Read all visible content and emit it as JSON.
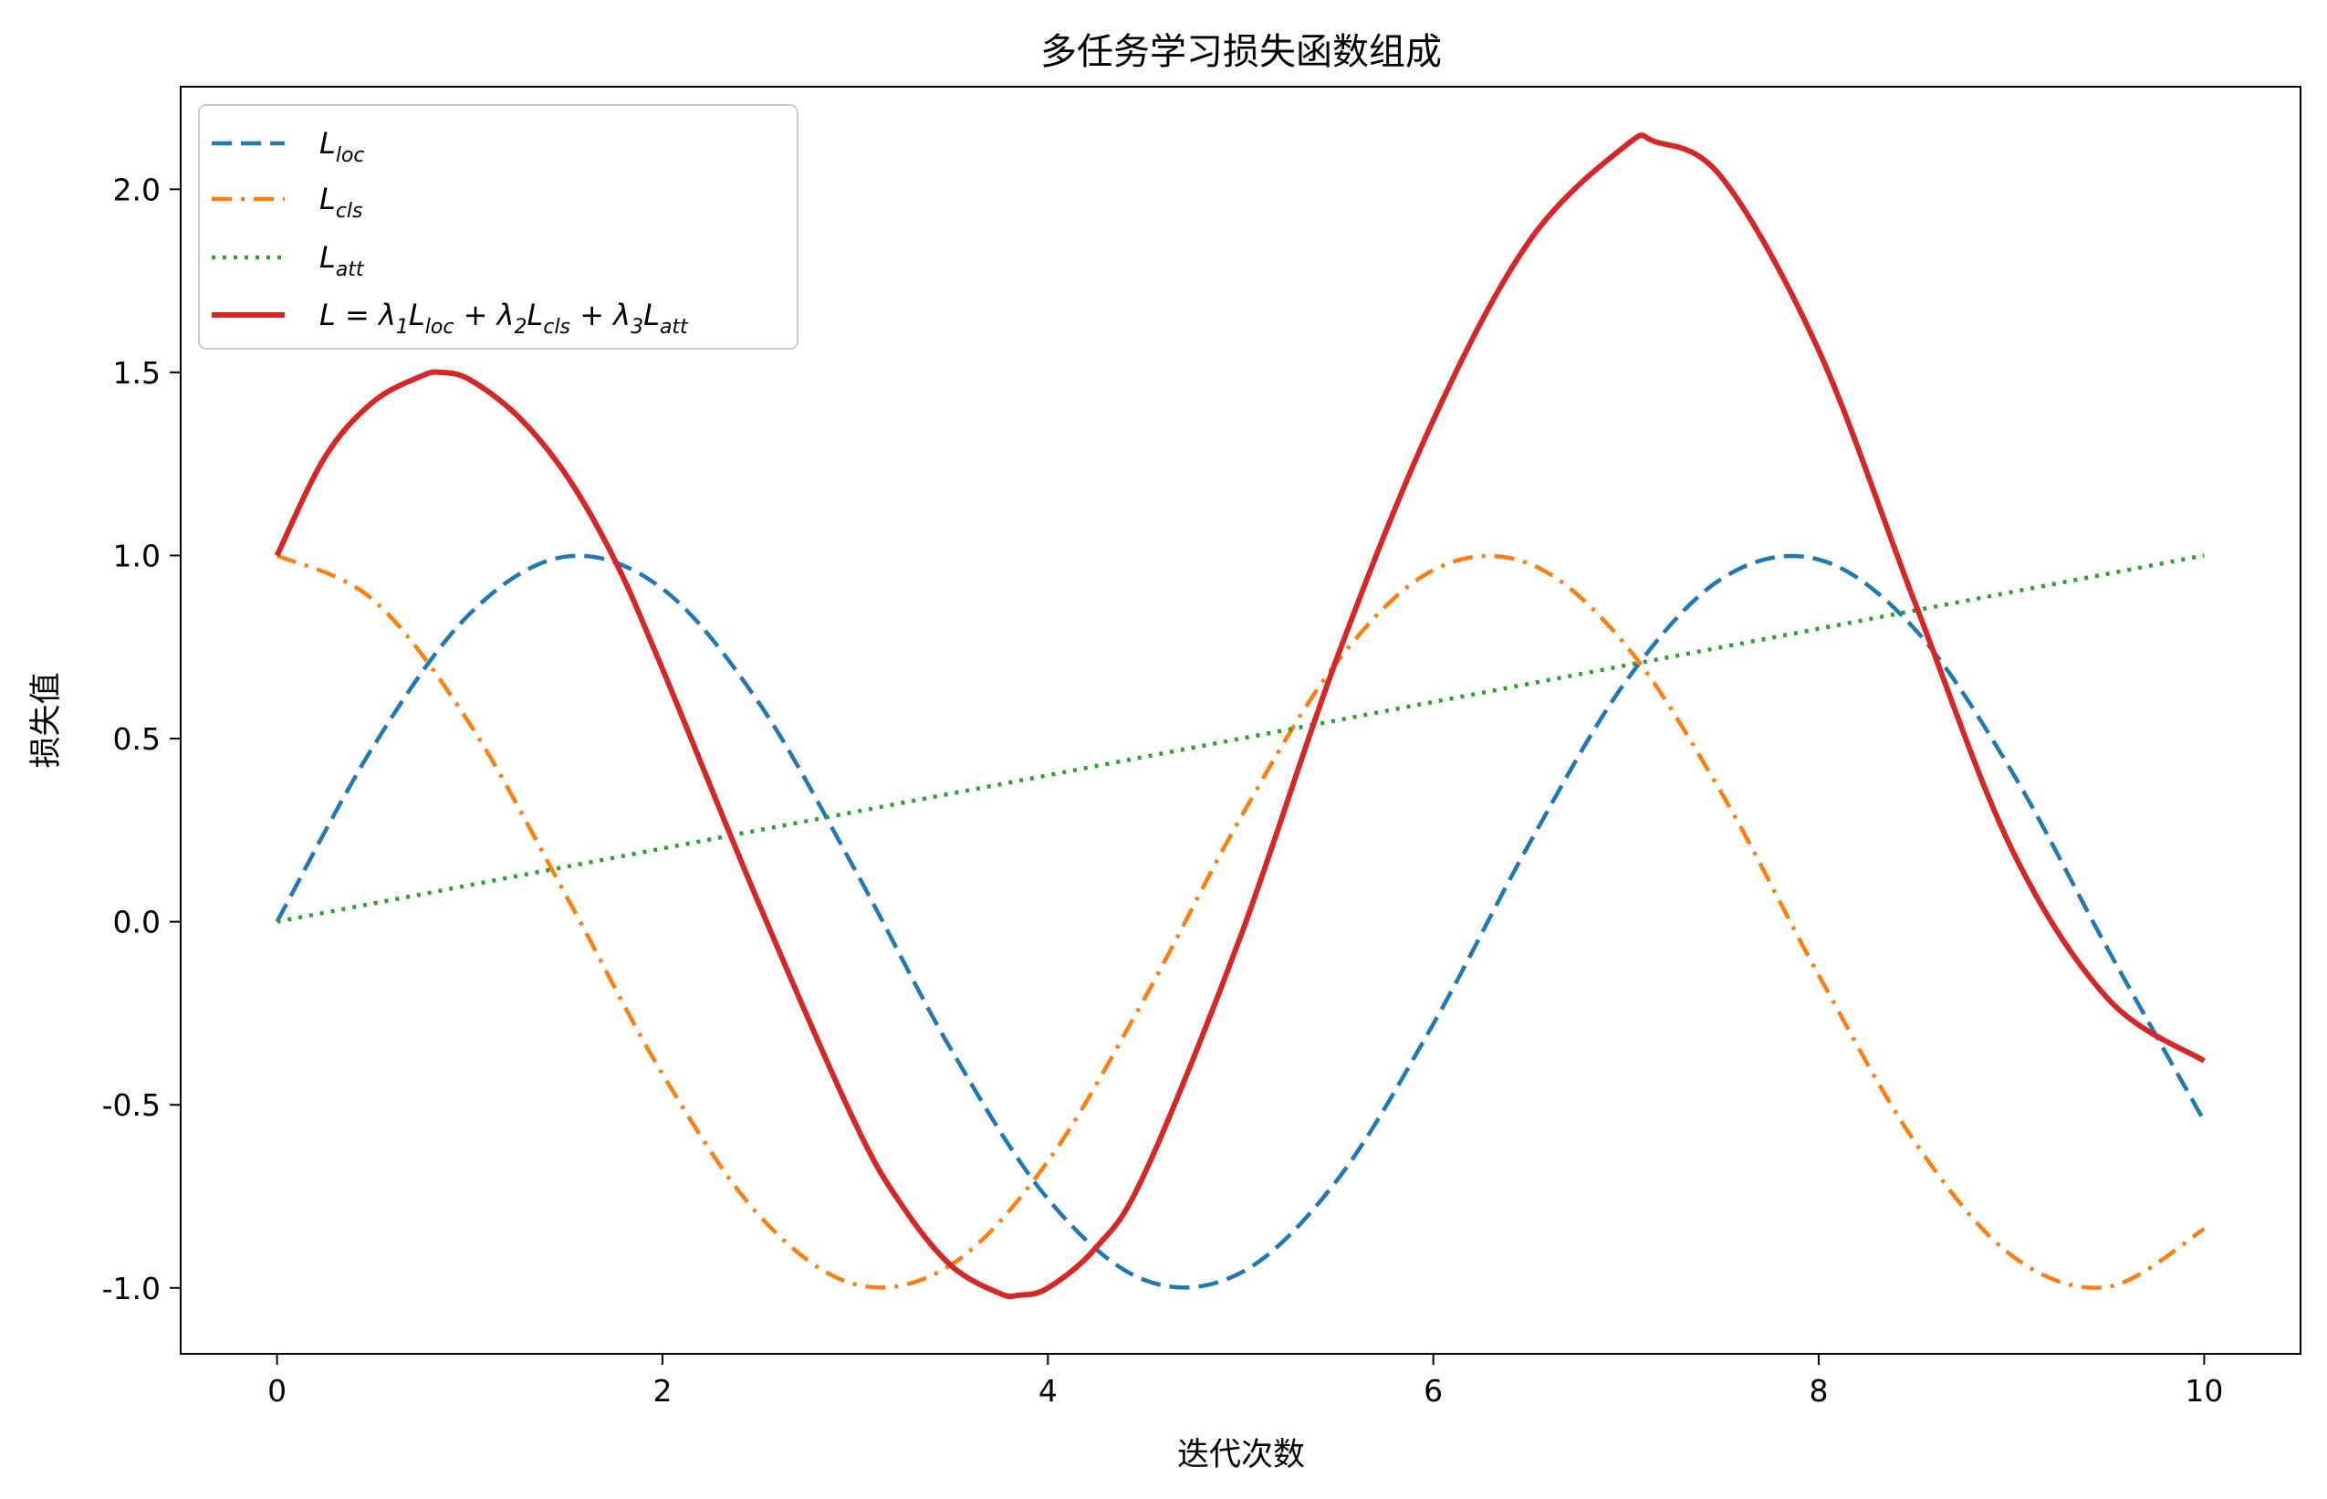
{
  "chart_data": {
    "type": "line",
    "title": "多任务学习损失函数组成",
    "xlabel": "迭代次数",
    "ylabel": "损失值",
    "xlim": [
      -0.5,
      10.5
    ],
    "ylim": [
      -1.18,
      2.28
    ],
    "xticks": [
      0,
      2,
      4,
      6,
      8,
      10
    ],
    "xtick_labels": [
      "0",
      "2",
      "4",
      "6",
      "8",
      "10"
    ],
    "yticks": [
      -1.0,
      -0.5,
      0.0,
      0.5,
      1.0,
      1.5,
      2.0
    ],
    "ytick_labels": [
      "-1.0",
      "-0.5",
      "0.0",
      "0.5",
      "1.0",
      "1.5",
      "2.0"
    ],
    "grid": false,
    "legend_position": "upper-left",
    "series": [
      {
        "name": "L_loc",
        "color": "#1f77b4",
        "dash": "dashed",
        "x": [
          0,
          0.5,
          1,
          1.5,
          2,
          2.5,
          3,
          3.5,
          4,
          4.5,
          5,
          5.5,
          6,
          6.5,
          7,
          7.5,
          8,
          8.5,
          9,
          9.5,
          10
        ],
        "y": [
          0,
          0.479,
          0.841,
          0.997,
          0.909,
          0.598,
          0.141,
          -0.351,
          -0.757,
          -0.978,
          -0.959,
          -0.706,
          -0.279,
          0.215,
          0.657,
          0.938,
          0.989,
          0.798,
          0.412,
          -0.075,
          -0.544
        ]
      },
      {
        "name": "L_cls",
        "color": "#ff7f0e",
        "dash": "dashdot",
        "x": [
          0,
          0.5,
          1,
          1.5,
          2,
          2.5,
          3,
          3.5,
          4,
          4.5,
          5,
          5.5,
          6,
          6.5,
          7,
          7.5,
          8,
          8.5,
          9,
          9.5,
          10
        ],
        "y": [
          1,
          0.878,
          0.54,
          0.071,
          -0.416,
          -0.801,
          -0.99,
          -0.936,
          -0.654,
          -0.211,
          0.284,
          0.709,
          0.96,
          0.977,
          0.754,
          0.347,
          -0.146,
          -0.602,
          -0.911,
          -0.997,
          -0.839
        ]
      },
      {
        "name": "L_att",
        "color": "#2ca02c",
        "dash": "dotted",
        "x": [
          0,
          0.5,
          1,
          1.5,
          2,
          2.5,
          3,
          3.5,
          4,
          4.5,
          5,
          5.5,
          6,
          6.5,
          7,
          7.5,
          8,
          8.5,
          9,
          9.5,
          10
        ],
        "y": [
          0,
          0.05,
          0.1,
          0.15,
          0.2,
          0.25,
          0.3,
          0.35,
          0.4,
          0.45,
          0.5,
          0.55,
          0.6,
          0.65,
          0.7,
          0.75,
          0.8,
          0.85,
          0.9,
          0.95,
          1.0
        ]
      },
      {
        "name": "L = λ1·L_loc + λ2·L_cls + λ3·L_att",
        "color": "#d62728",
        "dash": "solid",
        "x": [
          0,
          0.25,
          0.5,
          0.75,
          0.85,
          1,
          1.25,
          1.5,
          1.75,
          2,
          2.5,
          3,
          3.25,
          3.5,
          3.75,
          3.85,
          4,
          4.25,
          4.5,
          5,
          5.5,
          6,
          6.5,
          7,
          7.15,
          7.5,
          8,
          8.5,
          9,
          9.5,
          10
        ],
        "y": [
          1.0,
          1.27,
          1.42,
          1.49,
          1.5,
          1.48,
          1.38,
          1.22,
          0.99,
          0.69,
          0.05,
          -0.55,
          -0.78,
          -0.94,
          -1.015,
          -1.02,
          -1.0,
          -0.89,
          -0.69,
          -0.04,
          0.72,
          1.37,
          1.86,
          2.12,
          2.13,
          2.03,
          1.56,
          0.87,
          0.2,
          -0.21,
          -0.38
        ]
      }
    ],
    "legend": [
      {
        "base": "L",
        "sub": "loc",
        "color": "#1f77b4",
        "dash": "dashed"
      },
      {
        "base": "L",
        "sub": "cls",
        "color": "#ff7f0e",
        "dash": "dashdot"
      },
      {
        "base": "L",
        "sub": "att",
        "color": "#2ca02c",
        "dash": "dotted"
      },
      {
        "label": "L = λ1Lloc + λ2Lcls + λ3Latt",
        "color": "#d62728",
        "dash": "solid"
      }
    ]
  }
}
